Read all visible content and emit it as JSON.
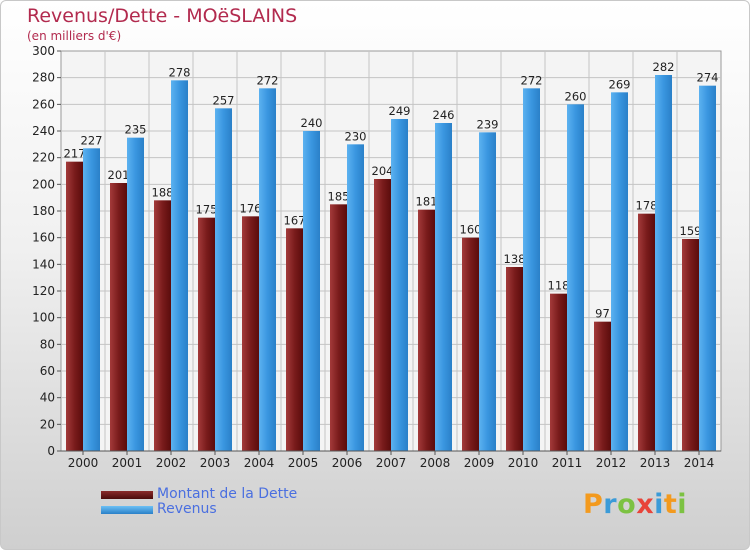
{
  "title": "Revenus/Dette - MOëSLAINS",
  "subtitle": "(en milliers d'€)",
  "colors": {
    "dette": "#7a1c1c",
    "revenus": "#3a96e0",
    "title": "#b22a4e",
    "legend_text": "#4a6fe0"
  },
  "legend": {
    "dette_label": "Montant de la Dette",
    "revenus_label": "Revenus"
  },
  "logo": {
    "text": "Proxiti",
    "letters": [
      {
        "ch": "P",
        "color": "#f39a1e"
      },
      {
        "ch": "r",
        "color": "#3b9bd8"
      },
      {
        "ch": "o",
        "color": "#7cc242"
      },
      {
        "ch": "x",
        "color": "#e8443a"
      },
      {
        "ch": "i",
        "color": "#3b9bd8"
      },
      {
        "ch": "t",
        "color": "#f39a1e"
      },
      {
        "ch": "i",
        "color": "#7cc242"
      }
    ]
  },
  "chart_data": {
    "type": "bar",
    "categories": [
      "2000",
      "2001",
      "2002",
      "2003",
      "2004",
      "2005",
      "2006",
      "2007",
      "2008",
      "2009",
      "2010",
      "2011",
      "2012",
      "2013",
      "2014"
    ],
    "series": [
      {
        "name": "Montant de la Dette",
        "values": [
          217,
          201,
          188,
          175,
          176,
          167,
          185,
          204,
          181,
          160,
          138,
          118,
          97,
          178,
          159
        ]
      },
      {
        "name": "Revenus",
        "values": [
          227,
          235,
          278,
          257,
          272,
          240,
          230,
          249,
          246,
          239,
          272,
          260,
          269,
          282,
          274
        ]
      }
    ],
    "ylim": [
      0,
      300
    ],
    "yticks": [
      0,
      20,
      40,
      60,
      80,
      100,
      120,
      140,
      160,
      180,
      200,
      220,
      240,
      260,
      280,
      300
    ],
    "grid": true,
    "legend_position": "bottom-left"
  }
}
